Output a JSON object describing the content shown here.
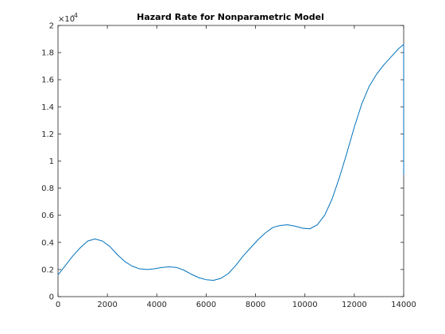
{
  "chart_data": {
    "type": "line",
    "title": "Hazard Rate for Nonparametric Model",
    "xlabel": "",
    "ylabel": "",
    "xlim": [
      0,
      14000
    ],
    "ylim": [
      0,
      2
    ],
    "y_scale_label": "×10",
    "y_scale_exponent": "-4",
    "x_ticks": [
      0,
      2000,
      4000,
      6000,
      8000,
      10000,
      12000,
      14000
    ],
    "x_tick_labels": [
      "0",
      "2000",
      "4000",
      "6000",
      "8000",
      "10000",
      "12000",
      "14000"
    ],
    "y_ticks": [
      0,
      0.2,
      0.4,
      0.6,
      0.8,
      1,
      1.2,
      1.4,
      1.6,
      1.8,
      2
    ],
    "y_tick_labels": [
      "0",
      "0.2",
      "0.4",
      "0.6",
      "0.8",
      "1",
      "1.2",
      "1.4",
      "1.6",
      "1.8",
      "2"
    ],
    "grid": false,
    "series": [
      {
        "color": "#0072BD",
        "x": [
          0,
          300,
          600,
          900,
          1200,
          1500,
          1800,
          2100,
          2400,
          2700,
          3000,
          3300,
          3600,
          3900,
          4200,
          4500,
          4800,
          5100,
          5400,
          5700,
          6000,
          6300,
          6600,
          6900,
          7200,
          7500,
          7800,
          8100,
          8400,
          8700,
          9000,
          9300,
          9600,
          9900,
          10200,
          10500,
          10800,
          11100,
          11400,
          11700,
          12000,
          12300,
          12600,
          12900,
          13200,
          13500,
          13800,
          14000,
          14000
        ],
        "y": [
          0.16,
          0.23,
          0.3,
          0.36,
          0.41,
          0.425,
          0.41,
          0.37,
          0.31,
          0.26,
          0.225,
          0.205,
          0.2,
          0.205,
          0.215,
          0.22,
          0.215,
          0.195,
          0.165,
          0.14,
          0.125,
          0.12,
          0.135,
          0.17,
          0.23,
          0.3,
          0.36,
          0.42,
          0.47,
          0.51,
          0.525,
          0.53,
          0.52,
          0.505,
          0.5,
          0.53,
          0.6,
          0.72,
          0.88,
          1.06,
          1.25,
          1.42,
          1.55,
          1.64,
          1.71,
          1.77,
          1.83,
          1.86,
          0.9
        ]
      }
    ]
  }
}
